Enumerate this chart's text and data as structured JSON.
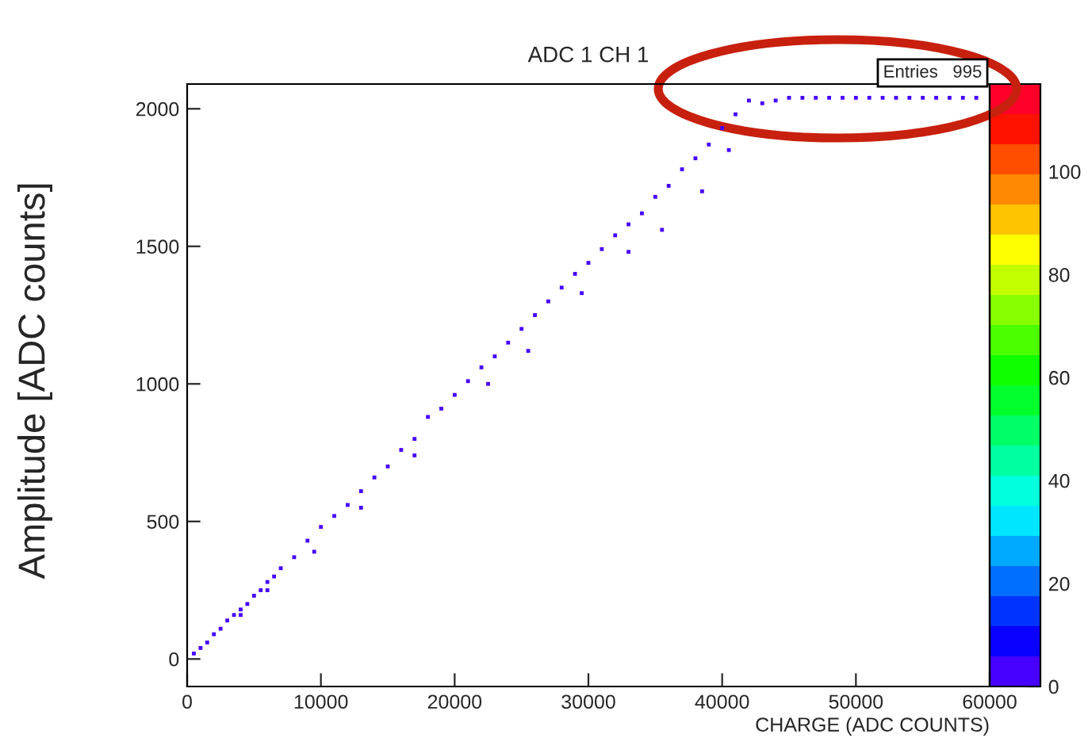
{
  "chart_data": {
    "type": "scatter",
    "title": "ADC 1 CH 1",
    "xlabel": "CHARGE (ADC COUNTS)",
    "ylabel": "Amplitude [ADC counts]",
    "x": [
      500,
      1000,
      1500,
      2000,
      2500,
      3000,
      3500,
      4000,
      4500,
      5000,
      5500,
      6000,
      6500,
      7000,
      8000,
      9000,
      10000,
      11000,
      12000,
      13000,
      14000,
      15000,
      16000,
      17000,
      18000,
      19000,
      20000,
      21000,
      22000,
      23000,
      24000,
      25000,
      26000,
      27000,
      28000,
      29000,
      30000,
      31000,
      32000,
      33000,
      34000,
      35000,
      36000,
      37000,
      38000,
      39000,
      40000,
      41000,
      42000,
      17000,
      22500,
      25500,
      29500,
      33000,
      35500,
      38500,
      40500,
      13000,
      9500,
      6000,
      4000,
      43000,
      44000,
      45000,
      46000,
      47000,
      48000,
      49000,
      50000,
      51000,
      52000,
      53000,
      54000,
      55000,
      56000,
      57000,
      58000,
      59000
    ],
    "values": [
      20,
      40,
      60,
      90,
      110,
      140,
      160,
      180,
      200,
      230,
      250,
      280,
      300,
      330,
      370,
      430,
      480,
      520,
      560,
      610,
      660,
      700,
      760,
      800,
      880,
      910,
      960,
      1010,
      1060,
      1100,
      1150,
      1200,
      1250,
      1300,
      1350,
      1400,
      1440,
      1490,
      1540,
      1580,
      1620,
      1680,
      1720,
      1780,
      1820,
      1870,
      1930,
      1980,
      2030,
      740,
      1000,
      1120,
      1330,
      1480,
      1560,
      1700,
      1850,
      550,
      390,
      250,
      160,
      2020,
      2030,
      2040,
      2040,
      2040,
      2040,
      2040,
      2040,
      2040,
      2040,
      2040,
      2040,
      2040,
      2040,
      2040,
      2040,
      2040
    ],
    "cvalues": [
      3,
      3,
      3,
      3,
      3,
      3,
      3,
      3,
      3,
      3,
      3,
      3,
      3,
      3,
      3,
      3,
      3,
      3,
      3,
      3,
      3,
      3,
      3,
      3,
      3,
      3,
      3,
      3,
      3,
      3,
      3,
      3,
      3,
      3,
      3,
      3,
      3,
      3,
      3,
      3,
      3,
      3,
      3,
      3,
      3,
      3,
      3,
      3,
      3,
      3,
      3,
      3,
      3,
      3,
      3,
      3,
      3,
      3,
      3,
      3,
      3,
      3,
      3,
      3,
      3,
      3,
      3,
      3,
      3,
      3,
      3,
      3,
      3,
      3,
      3,
      3,
      3,
      3
    ],
    "marker": "square",
    "xlim": [
      0,
      60000
    ],
    "xticks": [
      0,
      10000,
      20000,
      30000,
      40000,
      50000,
      60000
    ],
    "ylim": [
      -100,
      2090
    ],
    "yticks": [
      0,
      500,
      1000,
      1500,
      2000
    ],
    "clim": [
      0,
      117
    ],
    "cticks": [
      0,
      20,
      40,
      60,
      80,
      100
    ],
    "grid": false,
    "annotations": [
      "Entries",
      "995"
    ]
  }
}
